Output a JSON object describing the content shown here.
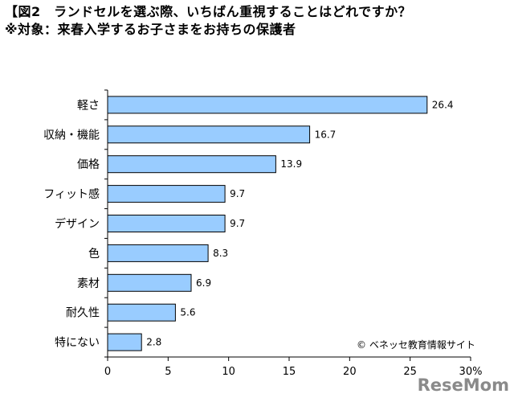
{
  "header": {
    "title_line1": "【図2　ランドセルを選ぶ際、いちばん重視することはどれですか？",
    "title_line2": "※対象：来春入学するお子さまをお持ちの保護者"
  },
  "footer": {
    "credit": "© ベネッセ教育情報サイト",
    "watermark": "ReseMom"
  },
  "colors": {
    "bar_fill": "#99ccff",
    "bar_stroke": "#000000"
  },
  "chart_data": {
    "type": "bar",
    "orientation": "horizontal",
    "categories": [
      "軽さ",
      "収納・機能",
      "価格",
      "フィット感",
      "デザイン",
      "色",
      "素材",
      "耐久性",
      "特にない"
    ],
    "values": [
      26.4,
      16.7,
      13.9,
      9.7,
      9.7,
      8.3,
      6.9,
      5.6,
      2.8
    ],
    "data_labels": [
      "26.4",
      "16.7",
      "13.9",
      "9.7",
      "9.7",
      "8.3",
      "6.9",
      "5.6",
      "2.8"
    ],
    "xlim": [
      0,
      30
    ],
    "x_ticks": [
      0,
      5,
      10,
      15,
      20,
      25,
      30
    ],
    "x_tick_labels": [
      "0",
      "5",
      "10",
      "15",
      "20",
      "25",
      "30%"
    ],
    "grid": false
  }
}
